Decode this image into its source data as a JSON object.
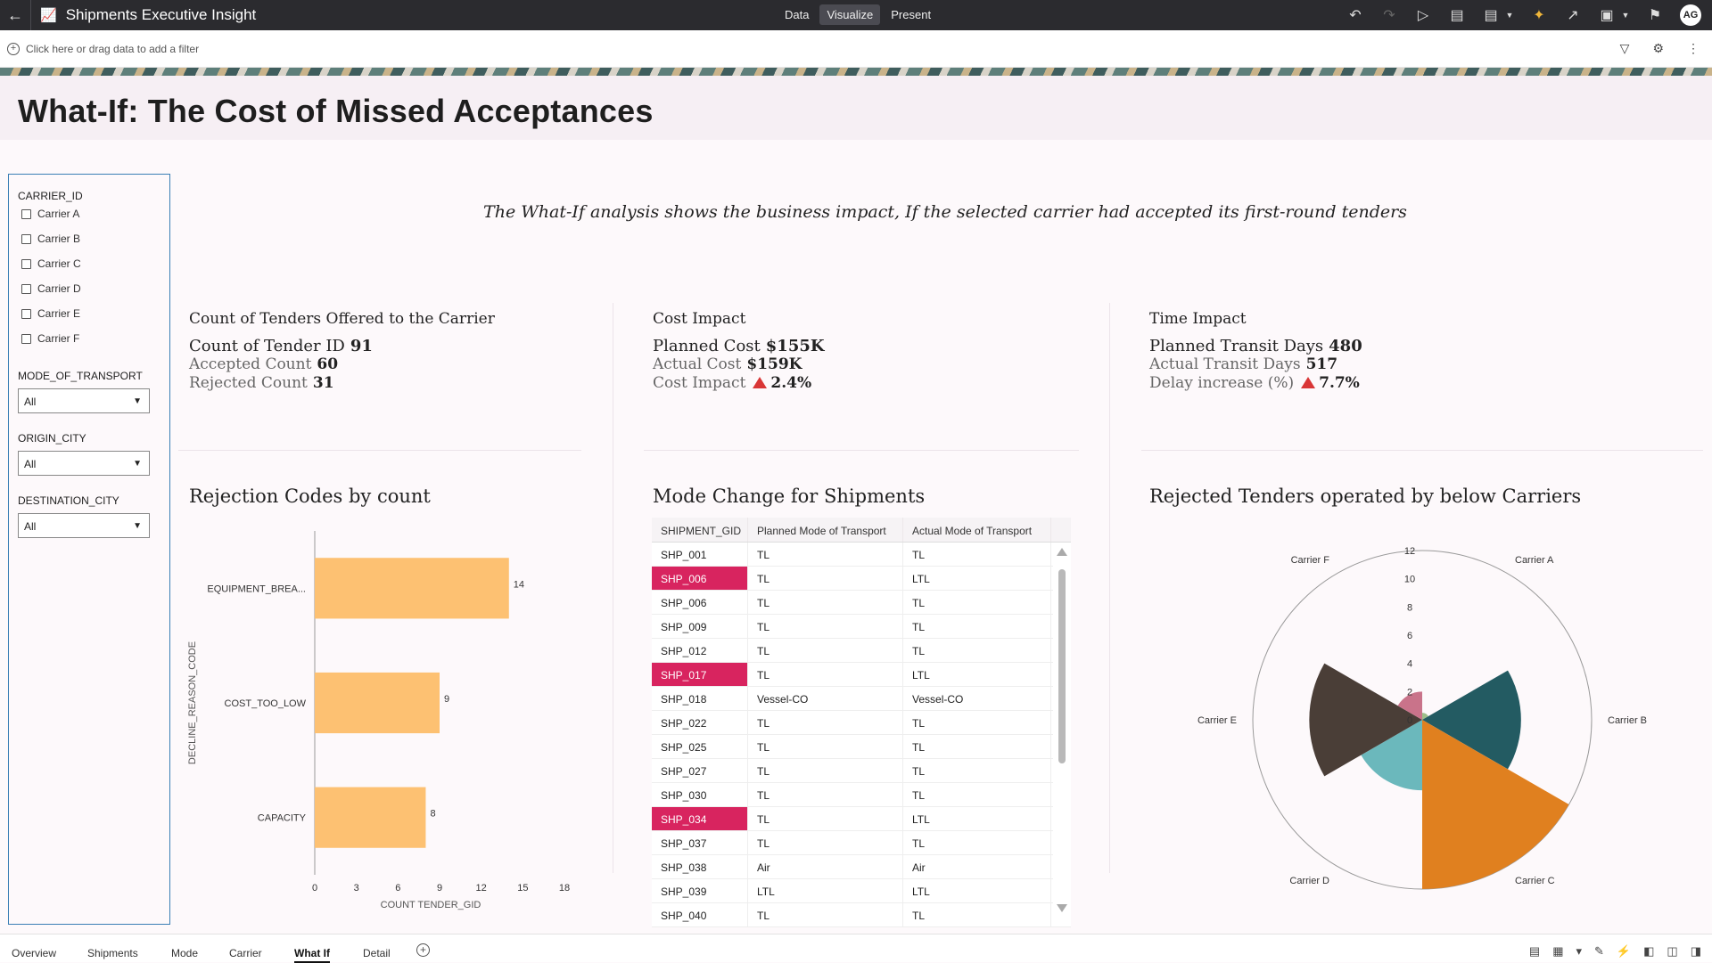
{
  "app": {
    "title": "Shipments Executive Insight"
  },
  "modes": [
    "Data",
    "Visualize",
    "Present"
  ],
  "filter_bar": {
    "hint": "Click here or drag data to add a filter"
  },
  "page": {
    "title": "What-If: The Cost of Missed Acceptances",
    "subtitle": "The What-If analysis shows the business impact, If the selected carrier had accepted its first-round tenders"
  },
  "filters": {
    "carrier_label": "CARRIER_ID",
    "carriers": [
      "Carrier A",
      "Carrier B",
      "Carrier C",
      "Carrier D",
      "Carrier E",
      "Carrier F"
    ],
    "mode_label": "MODE_OF_TRANSPORT",
    "mode_value": "All",
    "origin_label": "ORIGIN_CITY",
    "origin_value": "All",
    "destination_label": "DESTINATION_CITY",
    "destination_value": "All"
  },
  "kpis": {
    "tenders": {
      "title": "Count of Tenders Offered to the Carrier",
      "main_label": "Count of Tender ID",
      "main_value": "91",
      "sub1_label": "Accepted Count",
      "sub1_value": "60",
      "sub2_label": "Rejected Count",
      "sub2_value": "31"
    },
    "cost": {
      "title": "Cost Impact",
      "main_label": "Planned Cost",
      "main_value": "$155K",
      "sub1_label": "Actual Cost",
      "sub1_value": "$159K",
      "sub2_label": "Cost Impact",
      "sub2_value": "2.4%"
    },
    "time": {
      "title": "Time Impact",
      "main_label": "Planned Transit Days",
      "main_value": "480",
      "sub1_label": "Actual Transit Days",
      "sub1_value": "517",
      "sub2_label": "Delay increase (%)",
      "sub2_value": "7.7%"
    }
  },
  "sections": {
    "rejection": "Rejection Codes by count",
    "mode_change": "Mode Change for Shipments",
    "rejected_carriers": "Rejected Tenders operated by below Carriers"
  },
  "table": {
    "headers": [
      "SHIPMENT_GID",
      "Planned Mode of Transport",
      "Actual Mode of Transport"
    ],
    "rows": [
      {
        "id": "SHP_001",
        "planned": "TL",
        "actual": "TL",
        "hl": false
      },
      {
        "id": "SHP_006",
        "planned": "TL",
        "actual": "LTL",
        "hl": true
      },
      {
        "id": "SHP_006",
        "planned": "TL",
        "actual": "TL",
        "hl": false
      },
      {
        "id": "SHP_009",
        "planned": "TL",
        "actual": "TL",
        "hl": false
      },
      {
        "id": "SHP_012",
        "planned": "TL",
        "actual": "TL",
        "hl": false
      },
      {
        "id": "SHP_017",
        "planned": "TL",
        "actual": "LTL",
        "hl": true
      },
      {
        "id": "SHP_018",
        "planned": "Vessel-CO",
        "actual": "Vessel-CO",
        "hl": false
      },
      {
        "id": "SHP_022",
        "planned": "TL",
        "actual": "TL",
        "hl": false
      },
      {
        "id": "SHP_025",
        "planned": "TL",
        "actual": "TL",
        "hl": false
      },
      {
        "id": "SHP_027",
        "planned": "TL",
        "actual": "TL",
        "hl": false
      },
      {
        "id": "SHP_030",
        "planned": "TL",
        "actual": "TL",
        "hl": false
      },
      {
        "id": "SHP_034",
        "planned": "TL",
        "actual": "LTL",
        "hl": true
      },
      {
        "id": "SHP_037",
        "planned": "TL",
        "actual": "TL",
        "hl": false
      },
      {
        "id": "SHP_038",
        "planned": "Air",
        "actual": "Air",
        "hl": false
      },
      {
        "id": "SHP_039",
        "planned": "LTL",
        "actual": "LTL",
        "hl": false
      },
      {
        "id": "SHP_040",
        "planned": "TL",
        "actual": "TL",
        "hl": false
      }
    ],
    "highlight_color": "#d8245f"
  },
  "chart_data": [
    {
      "type": "bar",
      "orientation": "horizontal",
      "categories": [
        "EQUIPMENT_BREA...",
        "COST_TOO_LOW",
        "CAPACITY"
      ],
      "values": [
        14,
        9,
        8
      ],
      "xlabel": "COUNT TENDER_GID",
      "ylabel": "DECLINE_REASON_CODE",
      "xlim": [
        0,
        18
      ],
      "xticks": [
        0,
        3,
        6,
        9,
        12,
        15,
        18
      ],
      "color": "#fdc172"
    },
    {
      "type": "polar-area",
      "categories": [
        "Carrier A",
        "Carrier B",
        "Carrier C",
        "Carrier D",
        "Carrier E",
        "Carrier F"
      ],
      "values": [
        0.5,
        7,
        12,
        5,
        8,
        2
      ],
      "colors": [
        "#9dbf8a",
        "#235b62",
        "#e0801f",
        "#6bb8bc",
        "#4a3e37",
        "#c9738a"
      ],
      "rlim": [
        0,
        12
      ],
      "rticks": [
        0,
        2,
        4,
        6,
        8,
        10,
        12
      ]
    }
  ],
  "bottom_tabs": [
    "Overview",
    "Shipments",
    "Mode",
    "Carrier",
    "What If",
    "Detail"
  ],
  "active_tab": "What If"
}
